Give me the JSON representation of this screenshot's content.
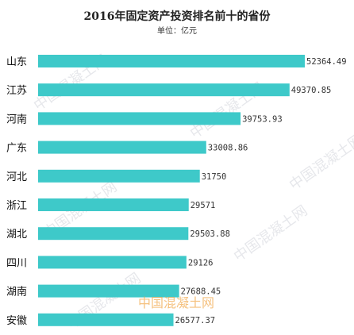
{
  "chart_data": {
    "type": "bar",
    "orientation": "horizontal",
    "title": "2016年固定资产投资排名前十的省份",
    "subtitle": "单位：亿元",
    "categories": [
      "山东",
      "江苏",
      "河南",
      "广东",
      "河北",
      "浙江",
      "湖北",
      "四川",
      "湖南",
      "安徽"
    ],
    "values": [
      52364.49,
      49370.85,
      39753.93,
      33008.86,
      31750,
      29571,
      29503.88,
      29126,
      27688.45,
      26577.37
    ],
    "value_labels": [
      "52364.49",
      "49370.85",
      "39753.93",
      "33008.86",
      "31750",
      "29571",
      "29503.88",
      "29126",
      "27688.45",
      "26577.37"
    ],
    "xlim": [
      0,
      52364.49
    ],
    "grid": false,
    "legend": "none",
    "bar_color": "#3ec9c9"
  },
  "watermark": {
    "text": "中国混凝土网",
    "logo_text": "中国混凝土网"
  }
}
